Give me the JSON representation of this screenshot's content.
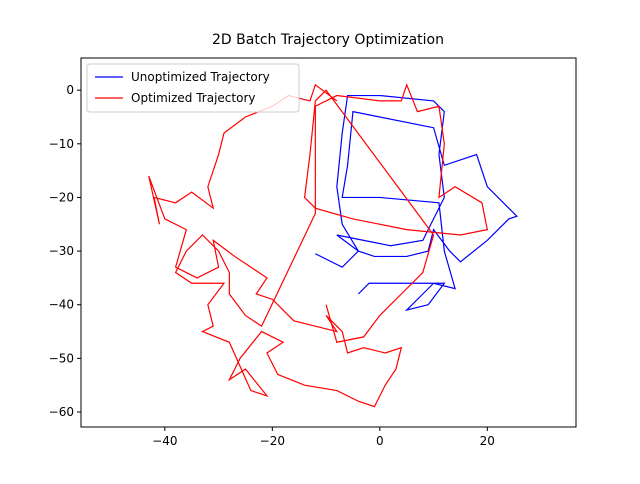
{
  "chart_data": {
    "type": "line",
    "title": "2D Batch Trajectory Optimization",
    "xlim": [
      -55.6,
      36.5
    ],
    "ylim": [
      -62.8,
      6.0
    ],
    "xticks": [
      {
        "value": -40,
        "label": "−40"
      },
      {
        "value": -20,
        "label": "−20"
      },
      0,
      20
    ],
    "yticks": [
      0,
      {
        "value": -10,
        "label": "−10"
      },
      {
        "value": -20,
        "label": "−20"
      },
      {
        "value": -30,
        "label": "−30"
      },
      {
        "value": -40,
        "label": "−40"
      },
      {
        "value": -50,
        "label": "−50"
      },
      {
        "value": -60,
        "label": "−60"
      }
    ],
    "legend": "upper left",
    "series": [
      {
        "name": "Unoptimized Trajectory",
        "color": "#0000ff",
        "x": [
          -12,
          -7,
          -4,
          -8,
          -3,
          2,
          8,
          10,
          12,
          11,
          12,
          10,
          0,
          -6,
          -7,
          -8,
          -7,
          -4,
          -1,
          5,
          9,
          10,
          13,
          15,
          20,
          24,
          25.5,
          20,
          18,
          12,
          10,
          0,
          -5,
          -6,
          -7,
          0,
          11,
          12,
          14,
          10,
          8,
          5,
          9,
          12,
          -2,
          -4
        ],
        "values": [
          -30.5,
          -33,
          -30,
          -27,
          -28,
          -29,
          -28,
          -24,
          -20,
          -12,
          -4,
          -2,
          -1,
          -1,
          -8,
          -18,
          -25,
          -30,
          -31,
          -31,
          -30,
          -26,
          -30,
          -32,
          -28,
          -24,
          -23.5,
          -18,
          -12,
          -14,
          -7,
          -5,
          -4,
          -14,
          -20,
          -20,
          -21,
          -30,
          -37,
          -36,
          -38,
          -41,
          -40,
          -36,
          -36,
          -38
        ]
      },
      {
        "name": "Optimized Trajectory",
        "color": "#ff0000",
        "x": [
          -8,
          -12,
          -13,
          -17,
          -20,
          -25,
          -29,
          -30,
          -32,
          -31,
          -35,
          -38,
          -42,
          -41,
          -43,
          -40,
          -36,
          -38,
          -34,
          -30,
          -31,
          -27,
          -24,
          -21,
          -23,
          -20,
          -18,
          -16,
          -12,
          -8,
          -10,
          -7,
          -6,
          -3,
          1,
          4,
          3,
          1,
          -1,
          -4,
          -8,
          -14,
          -19,
          -21,
          -18,
          -22,
          -26,
          -28,
          -25,
          -21,
          -24,
          -28,
          -33,
          -31,
          -32,
          -29,
          -35,
          -38,
          -36,
          -33,
          -30,
          -28,
          -28,
          -25,
          -22,
          -12,
          -12,
          -12,
          -8,
          0,
          4,
          5,
          7,
          11,
          12,
          11,
          14,
          19,
          20,
          15,
          5,
          -5,
          -12,
          -14,
          -13,
          -12,
          -10,
          10,
          8,
          4,
          0,
          -3,
          -8,
          -10
        ],
        "values": [
          -2,
          1,
          -2,
          -1,
          -3,
          -5,
          -8,
          -12,
          -18,
          -22,
          -19,
          -21,
          -20,
          -25,
          -16,
          -24,
          -26,
          -33,
          -35,
          -33,
          -28,
          -31,
          -33,
          -35,
          -38,
          -39,
          -41,
          -43,
          -44,
          -45,
          -42,
          -45,
          -49,
          -48,
          -49,
          -48,
          -52,
          -55,
          -59,
          -58,
          -56,
          -55,
          -53,
          -49,
          -47,
          -45,
          -50,
          -54,
          -52,
          -57,
          -56,
          -47,
          -45,
          -44,
          -40,
          -36,
          -36,
          -34,
          -30,
          -27,
          -30,
          -34,
          -38,
          -42,
          -44,
          -23,
          -11,
          -3,
          -1,
          -2,
          -2,
          1,
          -4,
          -3,
          -10,
          -20,
          -18,
          -21,
          -26,
          -27,
          -26,
          -24,
          -22,
          -20,
          -12,
          -2,
          0,
          -27,
          -34,
          -38,
          -42,
          -46,
          -47,
          -40
        ]
      }
    ]
  }
}
